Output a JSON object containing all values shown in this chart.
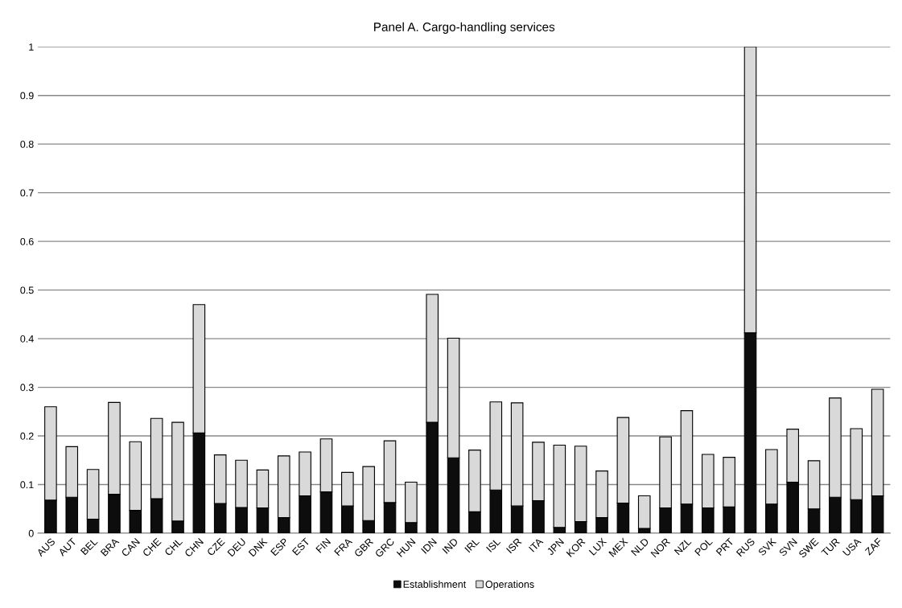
{
  "chart_data": {
    "type": "bar",
    "title": "Panel A. Cargo-handling services",
    "stacked": true,
    "categories": [
      "AUS",
      "AUT",
      "BEL",
      "BRA",
      "CAN",
      "CHE",
      "CHL",
      "CHN",
      "CZE",
      "DEU",
      "DNK",
      "ESP",
      "EST",
      "FIN",
      "FRA",
      "GBR",
      "GRC",
      "HUN",
      "IDN",
      "IND",
      "IRL",
      "ISL",
      "ISR",
      "ITA",
      "JPN",
      "KOR",
      "LUX",
      "MEX",
      "NLD",
      "NOR",
      "NZL",
      "POL",
      "PRT",
      "RUS",
      "SVK",
      "SVN",
      "SWE",
      "TUR",
      "USA",
      "ZAF"
    ],
    "series": [
      {
        "name": "Establishment",
        "color": "#0d0d0d",
        "values": [
          0.068,
          0.074,
          0.029,
          0.08,
          0.047,
          0.071,
          0.025,
          0.206,
          0.061,
          0.053,
          0.052,
          0.032,
          0.077,
          0.085,
          0.056,
          0.026,
          0.063,
          0.022,
          0.228,
          0.155,
          0.044,
          0.089,
          0.056,
          0.067,
          0.012,
          0.024,
          0.032,
          0.062,
          0.01,
          0.052,
          0.06,
          0.052,
          0.054,
          0.412,
          0.06,
          0.105,
          0.05,
          0.074,
          0.069,
          0.077
        ]
      },
      {
        "name": "Operations",
        "color": "#d9d9d9",
        "values": [
          0.192,
          0.104,
          0.102,
          0.189,
          0.141,
          0.165,
          0.203,
          0.264,
          0.1,
          0.097,
          0.078,
          0.127,
          0.09,
          0.109,
          0.069,
          0.111,
          0.127,
          0.083,
          0.263,
          0.246,
          0.127,
          0.181,
          0.212,
          0.12,
          0.169,
          0.155,
          0.096,
          0.176,
          0.067,
          0.146,
          0.192,
          0.11,
          0.102,
          0.588,
          0.112,
          0.109,
          0.099,
          0.204,
          0.146,
          0.219
        ]
      }
    ],
    "ylim": [
      0,
      1
    ],
    "yticks": [
      0,
      0.1,
      0.2,
      0.3,
      0.4,
      0.5,
      0.6,
      0.7,
      0.8,
      0.9,
      1
    ],
    "grid": "y",
    "legend": "bottom"
  }
}
